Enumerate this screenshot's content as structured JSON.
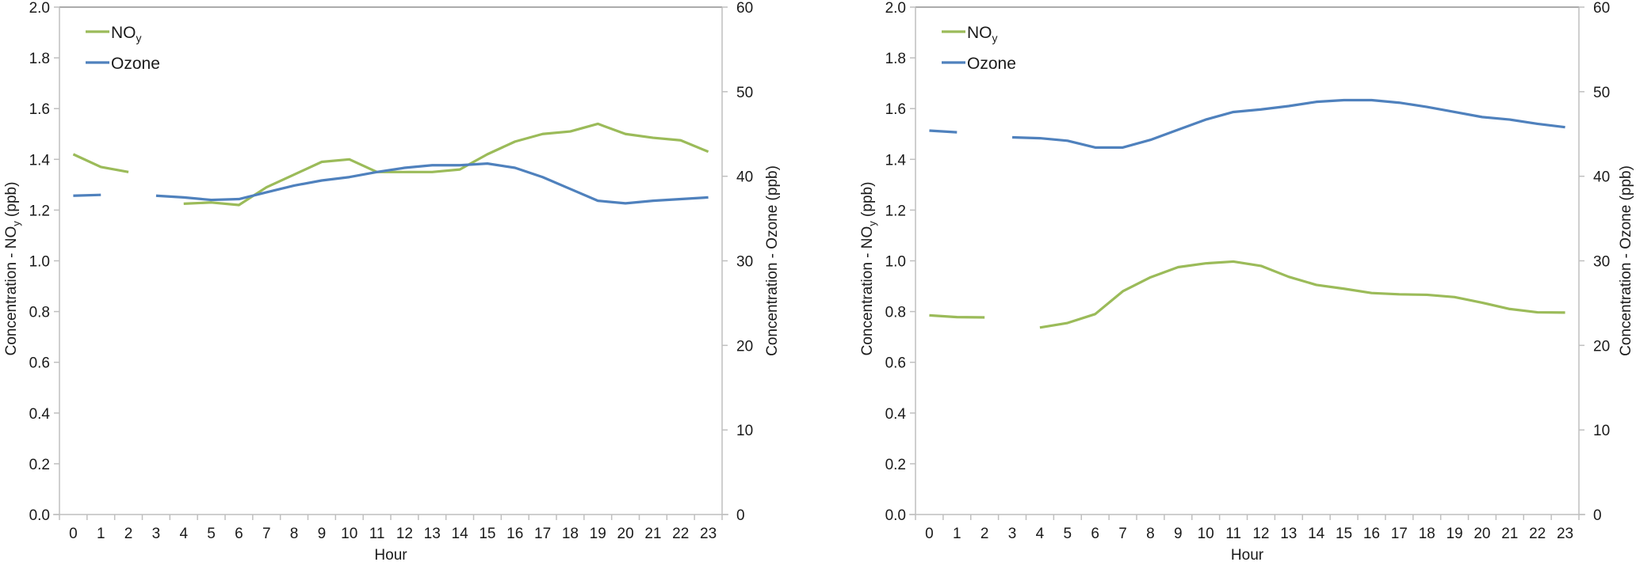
{
  "chart_data": [
    {
      "type": "line",
      "title": "",
      "xlabel": "Hour",
      "ylabel": "Concentration - NOy (ppb)",
      "ylabel_main": "Concentration - NO",
      "ylabel_sub": "y",
      "ylabel_tail": " (ppb)",
      "y2label": "Concentration - Ozone (ppb)",
      "ylim": [
        0,
        2.0
      ],
      "y2lim": [
        0,
        60
      ],
      "yticks": [
        "0.0",
        "0.2",
        "0.4",
        "0.6",
        "0.8",
        "1.0",
        "1.2",
        "1.4",
        "1.6",
        "1.8",
        "2.0"
      ],
      "y2ticks": [
        "0",
        "10",
        "20",
        "30",
        "40",
        "50",
        "60"
      ],
      "categories": [
        "0",
        "1",
        "2",
        "3",
        "4",
        "5",
        "6",
        "7",
        "8",
        "9",
        "10",
        "11",
        "12",
        "13",
        "14",
        "15",
        "16",
        "17",
        "18",
        "19",
        "20",
        "21",
        "22",
        "23"
      ],
      "legend_position": "top-left",
      "grid": false,
      "series": [
        {
          "name": "NOy",
          "name_main": "NO",
          "name_sub": "y",
          "axis": "left",
          "color": "#9bbb59",
          "values": [
            1.42,
            1.37,
            1.35,
            null,
            1.225,
            1.23,
            1.22,
            1.29,
            1.34,
            1.39,
            1.4,
            1.35,
            1.35,
            1.35,
            1.36,
            1.42,
            1.47,
            1.5,
            1.51,
            1.54,
            1.5,
            1.485,
            1.475,
            1.43
          ]
        },
        {
          "name": "Ozone",
          "name_main": "Ozone",
          "name_sub": "",
          "axis": "right",
          "color": "#4f81bd",
          "values": [
            37.7,
            37.8,
            null,
            37.7,
            37.5,
            37.2,
            37.3,
            38.1,
            38.9,
            39.5,
            39.9,
            40.5,
            41.0,
            41.3,
            41.3,
            41.5,
            41.0,
            39.9,
            38.5,
            37.1,
            36.8,
            37.1,
            37.3,
            37.5
          ]
        }
      ]
    },
    {
      "type": "line",
      "title": "",
      "xlabel": "Hour",
      "ylabel": "Concentration - NOy (ppb)",
      "ylabel_main": "Concentration - NO",
      "ylabel_sub": "y",
      "ylabel_tail": " (ppb)",
      "y2label": "Concentration - Ozone (ppb)",
      "ylim": [
        0,
        2.0
      ],
      "y2lim": [
        0,
        60
      ],
      "yticks": [
        "0.0",
        "0.2",
        "0.4",
        "0.6",
        "0.8",
        "1.0",
        "1.2",
        "1.4",
        "1.6",
        "1.8",
        "2.0"
      ],
      "y2ticks": [
        "0",
        "10",
        "20",
        "30",
        "40",
        "50",
        "60"
      ],
      "categories": [
        "0",
        "1",
        "2",
        "3",
        "4",
        "5",
        "6",
        "7",
        "8",
        "9",
        "10",
        "11",
        "12",
        "13",
        "14",
        "15",
        "16",
        "17",
        "18",
        "19",
        "20",
        "21",
        "22",
        "23"
      ],
      "legend_position": "top-left",
      "grid": false,
      "series": [
        {
          "name": "NOy",
          "name_main": "NO",
          "name_sub": "y",
          "axis": "left",
          "color": "#9bbb59",
          "values": [
            0.785,
            0.778,
            0.777,
            null,
            0.737,
            0.755,
            0.79,
            0.88,
            0.935,
            0.975,
            0.99,
            0.997,
            0.98,
            0.937,
            0.905,
            0.89,
            0.873,
            0.868,
            0.866,
            0.857,
            0.835,
            0.81,
            0.797,
            0.796
          ]
        },
        {
          "name": "Ozone",
          "name_main": "Ozone",
          "name_sub": "",
          "axis": "right",
          "color": "#4f81bd",
          "values": [
            45.4,
            45.2,
            null,
            44.6,
            44.5,
            44.2,
            43.4,
            43.4,
            44.3,
            45.5,
            46.7,
            47.6,
            47.9,
            48.3,
            48.8,
            49.0,
            49.0,
            48.7,
            48.2,
            47.6,
            47.0,
            46.7,
            46.2,
            45.8
          ]
        }
      ]
    }
  ]
}
